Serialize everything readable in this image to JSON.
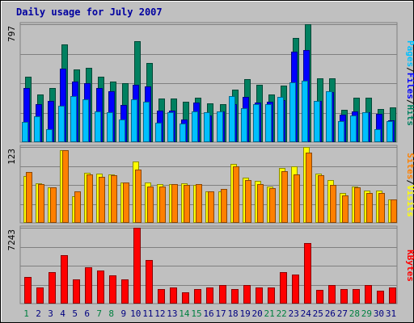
{
  "chart_data": {
    "type": "bar",
    "title": "Daily usage for July 2007",
    "categories": [
      "1",
      "2",
      "3",
      "4",
      "5",
      "6",
      "7",
      "8",
      "9",
      "10",
      "11",
      "12",
      "13",
      "14",
      "15",
      "16",
      "17",
      "18",
      "19",
      "20",
      "21",
      "22",
      "23",
      "24",
      "25",
      "26",
      "27",
      "28",
      "29",
      "30",
      "31"
    ],
    "weekend_days": [
      "1",
      "7",
      "8",
      "14",
      "15",
      "21",
      "22",
      "28",
      "29"
    ],
    "panels": [
      {
        "id": "hits-files-pages",
        "max_label": "797",
        "ylim": [
          0,
          797
        ],
        "legend": [
          {
            "label": "Pages",
            "color": "#00c0ff"
          },
          {
            "label": "/",
            "color": "#000000"
          },
          {
            "label": "Files",
            "color": "#0000ff"
          },
          {
            "label": "/",
            "color": "#000000"
          },
          {
            "label": "Hits",
            "color": "#008060"
          }
        ],
        "series": [
          {
            "name": "Hits",
            "color": "#008060",
            "values": [
              440,
              320,
              365,
              660,
              490,
              500,
              440,
              410,
              400,
              685,
              535,
              295,
              295,
              275,
              300,
              260,
              255,
              355,
              425,
              385,
              320,
              380,
              705,
              795,
              430,
              430,
              220,
              300,
              300,
              225,
              235
            ]
          },
          {
            "name": "Files",
            "color": "#0000ff",
            "values": [
              365,
              255,
              280,
              495,
              410,
              400,
              365,
              345,
              250,
              390,
              375,
              215,
              215,
              155,
              265,
              180,
              210,
              255,
              305,
              270,
              275,
              285,
              610,
              625,
              280,
              340,
              185,
              210,
              200,
              190,
              150
            ]
          },
          {
            "name": "Pages",
            "color": "#00c0ff",
            "values": [
              135,
              175,
              85,
              245,
              310,
              290,
              210,
              200,
              155,
              290,
              275,
              130,
              200,
              125,
              205,
              200,
              205,
              310,
              230,
              255,
              255,
              305,
              405,
              415,
              280,
              345,
              140,
              180,
              200,
              90,
              140
            ]
          }
        ]
      },
      {
        "id": "visits-sites",
        "max_label": "123",
        "ylim": [
          0,
          123
        ],
        "legend": [
          {
            "label": "Sites",
            "color": "#ff8000"
          },
          {
            "label": "/",
            "color": "#000000"
          },
          {
            "label": "Visits",
            "color": "#ffff00"
          }
        ],
        "series": [
          {
            "name": "Visits",
            "color": "#ffff00",
            "values": [
              76,
              64,
              58,
              118,
              43,
              81,
              80,
              78,
              65,
              100,
              66,
              63,
              63,
              64,
              61,
              51,
              51,
              96,
              73,
              68,
              59,
              89,
              91,
              123,
              80,
              70,
              48,
              59,
              52,
              52,
              38
            ]
          },
          {
            "name": "Sites",
            "color": "#ff8000",
            "values": [
              82,
              63,
              58,
              118,
              51,
              79,
              75,
              77,
              66,
              87,
              59,
              59,
              63,
              61,
              63,
              51,
              55,
              91,
              70,
              63,
              56,
              84,
              79,
              114,
              77,
              61,
              45,
              57,
              49,
              49,
              38
            ]
          }
        ]
      },
      {
        "id": "kbytes",
        "max_label": "7243",
        "ylim": [
          0,
          7243
        ],
        "legend": [
          {
            "label": "KBytes",
            "color": "#ff0000"
          }
        ],
        "series": [
          {
            "name": "KBytes",
            "color": "#ff0000",
            "values": [
              2531,
              1536,
              3015,
              4622,
              2274,
              3498,
              3193,
              2719,
              2350,
              7243,
              4143,
              1401,
              1556,
              1048,
              1401,
              1556,
              1790,
              1401,
              1790,
              1556,
              1556,
              2975,
              2796,
              5754,
              1323,
              1790,
              1401,
              1401,
              1790,
              1246,
              1556
            ]
          }
        ]
      }
    ]
  }
}
